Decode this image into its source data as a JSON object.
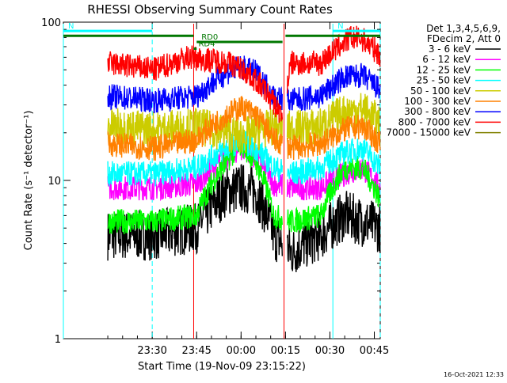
{
  "chart_data": {
    "type": "line",
    "title": "RHESSI Observing Summary Count Rates",
    "xlabel": "Start Time (19-Nov-09 23:15:22)",
    "ylabel": "Count Rate (s⁻¹ detector⁻¹)",
    "y_scale": "log",
    "ylim": [
      1,
      100
    ],
    "xlim_minutes": [
      -15,
      92
    ],
    "x_ticks": [
      {
        "label": "23:30",
        "min": 15
      },
      {
        "label": "23:45",
        "min": 30
      },
      {
        "label": "00:00",
        "min": 45
      },
      {
        "label": "00:15",
        "min": 60
      },
      {
        "label": "00:30",
        "min": 75
      },
      {
        "label": "00:45",
        "min": 90
      }
    ],
    "y_ticks": [
      {
        "label": "1",
        "value": 1
      },
      {
        "label": "10",
        "value": 10
      },
      {
        "label": "100",
        "value": 100
      }
    ],
    "legend": {
      "header": [
        "Det 1,3,4,5,6,9,",
        "FDecim 2, Att 0"
      ],
      "placement": "right"
    },
    "series": [
      {
        "name": "3 - 6 keV",
        "color": "#000000",
        "x": [
          0,
          16,
          30,
          40,
          45,
          50,
          56,
          62,
          72,
          80,
          86,
          92
        ],
        "y": [
          4.5,
          4.5,
          5,
          8.5,
          9,
          8.5,
          4.5,
          3.5,
          4.5,
          6,
          5.5,
          5
        ]
      },
      {
        "name": "6 - 12 keV",
        "color": "#ff00ff",
        "x": [
          0,
          16,
          30,
          40,
          45,
          50,
          56,
          62,
          72,
          80,
          86,
          92
        ],
        "y": [
          9,
          9,
          9.5,
          14,
          16,
          14,
          9.5,
          9,
          9,
          11,
          12,
          9
        ]
      },
      {
        "name": "12 - 25 keV",
        "color": "#00ff00",
        "x": [
          0,
          16,
          30,
          40,
          45,
          50,
          56,
          62,
          72,
          80,
          86,
          92
        ],
        "y": [
          5.5,
          5.5,
          6,
          13,
          17,
          13,
          6,
          5.5,
          6,
          12,
          12,
          7.5
        ]
      },
      {
        "name": "25 - 50 keV",
        "color": "#00ffff",
        "x": [
          0,
          16,
          30,
          40,
          45,
          50,
          56,
          62,
          72,
          80,
          86,
          92
        ],
        "y": [
          11,
          11,
          12,
          16,
          18,
          16,
          12,
          11,
          12,
          15,
          16,
          12
        ]
      },
      {
        "name": "50 - 100 keV",
        "color": "#cccc00",
        "x": [
          0,
          16,
          30,
          40,
          45,
          50,
          56,
          62,
          72,
          80,
          86,
          92
        ],
        "y": [
          22,
          21,
          22,
          20,
          19,
          20,
          22,
          21,
          22,
          27,
          28,
          23
        ]
      },
      {
        "name": "100 - 300 keV",
        "color": "#ff8000",
        "x": [
          0,
          16,
          30,
          40,
          45,
          50,
          56,
          62,
          72,
          80,
          86,
          92
        ],
        "y": [
          17,
          16,
          18,
          26,
          29,
          26,
          18,
          16,
          17,
          21,
          22,
          17
        ]
      },
      {
        "name": "300 - 800 keV",
        "color": "#0000ff",
        "x": [
          0,
          16,
          30,
          40,
          45,
          50,
          56,
          62,
          72,
          80,
          86,
          92
        ],
        "y": [
          34,
          32,
          34,
          48,
          52,
          48,
          34,
          32,
          34,
          45,
          46,
          37
        ]
      },
      {
        "name": "800 - 7000 keV",
        "color": "#ff0000",
        "x": [
          0,
          16,
          27,
          40,
          45,
          50,
          59,
          62,
          72,
          82,
          86,
          92
        ],
        "y": [
          55,
          50,
          60,
          56,
          51,
          43,
          25,
          55,
          55,
          80,
          78,
          62
        ]
      },
      {
        "name": "7000 - 15000 keV",
        "color": "#808000",
        "x": [
          0,
          92
        ],
        "y": [
          1,
          1
        ]
      }
    ],
    "annotations": [
      {
        "label": "N",
        "color": "#00ffff",
        "x_start": -15,
        "x_end": 15,
        "y": 88
      },
      {
        "label": "N",
        "color": "#00ffff",
        "x_start": 76,
        "x_end": 92,
        "y": 88
      },
      {
        "label": "RD4",
        "color": "#007700",
        "x_start": 29,
        "x_end": 30,
        "y": 68
      },
      {
        "label": "RD0",
        "color": "#007700",
        "x_start": 30,
        "x_end": 59,
        "y": 75
      },
      {
        "color": "#007700",
        "x_start": -15,
        "x_end": 29,
        "y": 82
      },
      {
        "color": "#007700",
        "x_start": 60,
        "x_end": 92,
        "y": 82
      }
    ],
    "vertical_markers": [
      {
        "x": -15,
        "style": "solid",
        "color": "#00ffff"
      },
      {
        "x": 15,
        "style": "dashed",
        "color": "#00ffff"
      },
      {
        "x": 76,
        "style": "solid",
        "color": "#00ffff"
      },
      {
        "x": 92,
        "style": "dashed",
        "color": "#00ffff"
      },
      {
        "x": 59.5,
        "style": "solid",
        "color": "#ff0000"
      },
      {
        "x": 29,
        "style": "solid",
        "color": "#ff0000"
      }
    ]
  },
  "footer": {
    "timestamp": "16-Oct-2021 12:33"
  }
}
